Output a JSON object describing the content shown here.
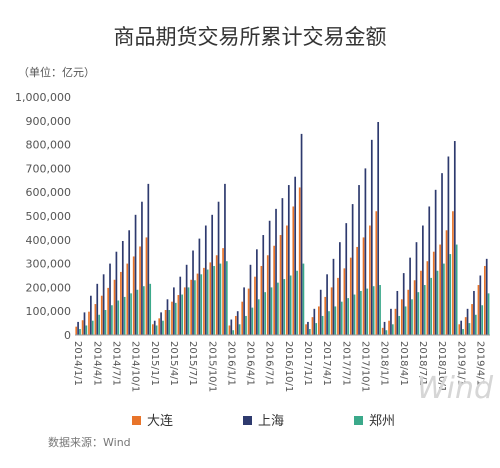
{
  "colors": {
    "dalian": "#E8742A",
    "shanghai": "#2E3A6E",
    "zhengzhou": "#3BA98A",
    "axis": "#999999"
  },
  "source": "数据来源：Wind",
  "watermark": "Wind",
  "chart_data": {
    "type": "bar",
    "title": "商品期货交易所累计交易金额",
    "unit_label": "（单位：亿元）",
    "ylim": [
      0,
      1000000
    ],
    "yticks": [
      0,
      100000,
      200000,
      300000,
      400000,
      500000,
      600000,
      700000,
      800000,
      900000,
      1000000
    ],
    "ytick_labels": [
      "0",
      "100,000",
      "200,000",
      "300,000",
      "400,000",
      "500,000",
      "600,000",
      "700,000",
      "800,000",
      "900,000",
      "1,000,000"
    ],
    "xtick_labels": [
      "2014/1/1",
      "2014/4/1",
      "2014/7/1",
      "2014/10/1",
      "2015/1/1",
      "2015/4/1",
      "2015/7/1",
      "2015/10/1",
      "2016/1/1",
      "2016/4/1",
      "2016/7/1",
      "2016/10/1",
      "2017/1/1",
      "2017/4/1",
      "2017/7/1",
      "2017/10/1",
      "2018/1/1",
      "2018/4/1",
      "2018/7/1",
      "2018/10/1",
      "2019/1/1",
      "2019/4/1"
    ],
    "categories": [
      "2014/1",
      "2014/2",
      "2014/3",
      "2014/4",
      "2014/5",
      "2014/6",
      "2014/7",
      "2014/8",
      "2014/9",
      "2014/10",
      "2014/11",
      "2014/12",
      "2015/1",
      "2015/2",
      "2015/3",
      "2015/4",
      "2015/5",
      "2015/6",
      "2015/7",
      "2015/8",
      "2015/9",
      "2015/10",
      "2015/11",
      "2015/12",
      "2016/1",
      "2016/2",
      "2016/3",
      "2016/4",
      "2016/5",
      "2016/6",
      "2016/7",
      "2016/8",
      "2016/9",
      "2016/10",
      "2016/11",
      "2016/12",
      "2017/1",
      "2017/2",
      "2017/3",
      "2017/4",
      "2017/5",
      "2017/6",
      "2017/7",
      "2017/8",
      "2017/9",
      "2017/10",
      "2017/11",
      "2017/12",
      "2018/1",
      "2018/2",
      "2018/3",
      "2018/4",
      "2018/5",
      "2018/6",
      "2018/7",
      "2018/8",
      "2018/9",
      "2018/10",
      "2018/11",
      "2018/12",
      "2019/1",
      "2019/2",
      "2019/3",
      "2019/4",
      "2019/5"
    ],
    "series": [
      {
        "name": "大连",
        "color_key": "dalian",
        "values": [
          35000,
          62000,
          98000,
          130000,
          165000,
          198000,
          232000,
          265000,
          300000,
          330000,
          372000,
          410000,
          45000,
          70000,
          105000,
          140000,
          168000,
          200000,
          232000,
          258000,
          282000,
          305000,
          335000,
          365000,
          40000,
          80000,
          140000,
          195000,
          245000,
          290000,
          335000,
          375000,
          420000,
          460000,
          540000,
          620000,
          45000,
          75000,
          120000,
          160000,
          200000,
          240000,
          280000,
          325000,
          370000,
          410000,
          460000,
          520000,
          30000,
          60000,
          110000,
          150000,
          190000,
          230000,
          270000,
          310000,
          350000,
          380000,
          440000,
          520000,
          45000,
          75000,
          130000,
          210000,
          290000
        ]
      },
      {
        "name": "上海",
        "color_key": "shanghai",
        "values": [
          55000,
          95000,
          165000,
          215000,
          255000,
          300000,
          350000,
          395000,
          440000,
          505000,
          560000,
          635000,
          60000,
          95000,
          150000,
          200000,
          245000,
          295000,
          355000,
          405000,
          460000,
          505000,
          560000,
          635000,
          65000,
          100000,
          200000,
          295000,
          360000,
          420000,
          480000,
          530000,
          575000,
          630000,
          665000,
          845000,
          55000,
          110000,
          190000,
          255000,
          320000,
          390000,
          470000,
          550000,
          630000,
          700000,
          820000,
          895000,
          55000,
          110000,
          185000,
          260000,
          325000,
          390000,
          460000,
          540000,
          610000,
          680000,
          750000,
          815000,
          60000,
          110000,
          185000,
          250000,
          320000
        ]
      },
      {
        "name": "郑州",
        "color_key": "zhengzhou",
        "values": [
          25000,
          40000,
          60000,
          85000,
          105000,
          125000,
          145000,
          160000,
          175000,
          190000,
          205000,
          215000,
          40000,
          60000,
          105000,
          135000,
          170000,
          200000,
          230000,
          255000,
          275000,
          290000,
          300000,
          310000,
          20000,
          45000,
          80000,
          115000,
          150000,
          180000,
          200000,
          220000,
          235000,
          250000,
          270000,
          300000,
          25000,
          50000,
          80000,
          100000,
          120000,
          140000,
          155000,
          170000,
          185000,
          195000,
          205000,
          210000,
          20000,
          45000,
          80000,
          120000,
          150000,
          180000,
          210000,
          240000,
          270000,
          300000,
          340000,
          380000,
          25000,
          50000,
          85000,
          125000,
          175000
        ]
      }
    ],
    "legend": {
      "placement": "bottom",
      "entries": [
        "大连",
        "上海",
        "郑州"
      ]
    },
    "grid": false
  }
}
